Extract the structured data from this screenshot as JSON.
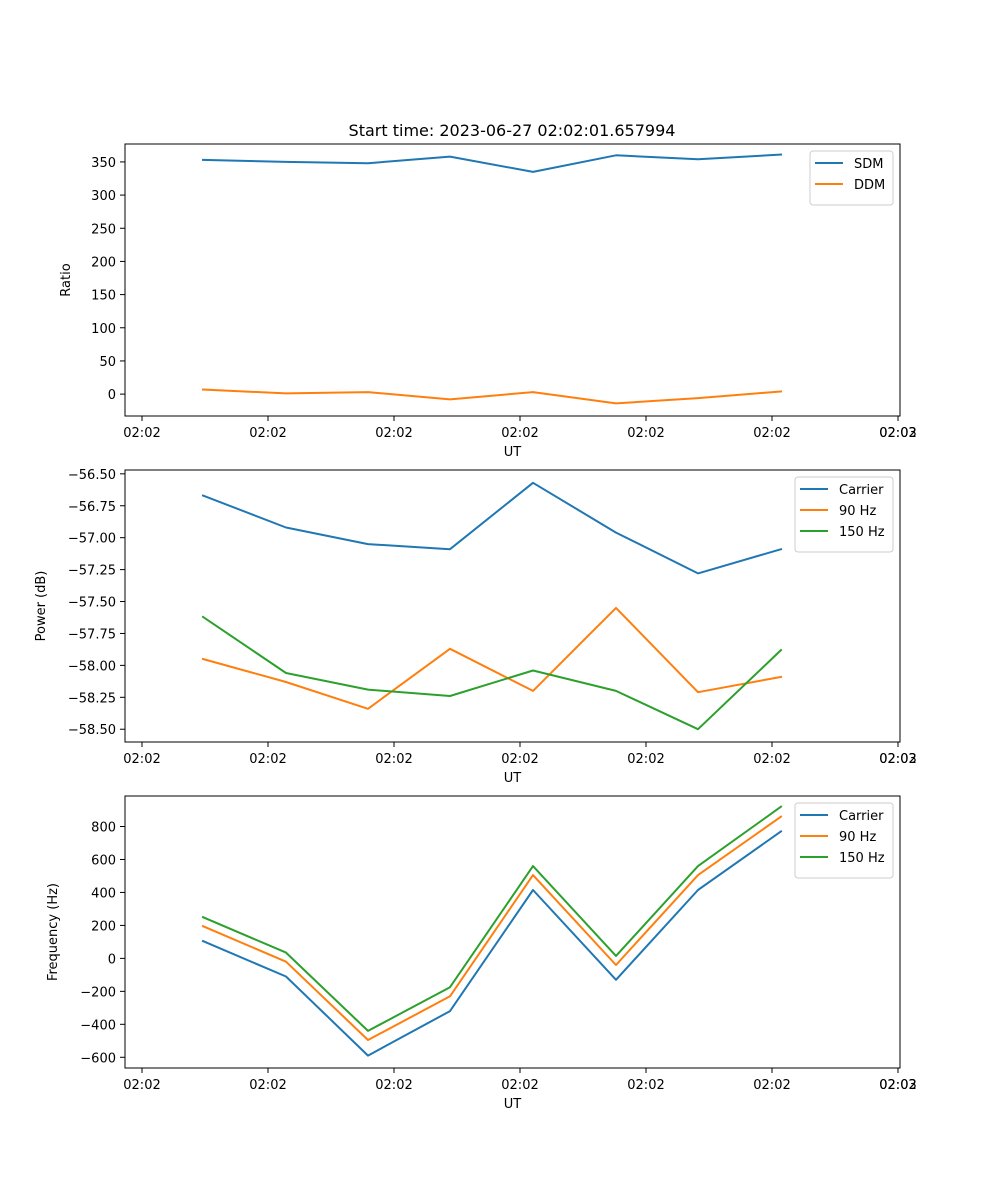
{
  "chart_data": [
    {
      "type": "line",
      "title": "Start time: 2023-06-27 02:02:01.657994",
      "xlabel": "UT",
      "ylabel": "Ratio",
      "x_tick_labels": [
        "02:02",
        "02:02",
        "02:02",
        "02:02",
        "02:02",
        "02:02",
        "02:02",
        "02:03"
      ],
      "y_ticks": [
        0,
        50,
        100,
        150,
        200,
        250,
        300,
        350
      ],
      "ylim": [
        -33,
        377
      ],
      "grid": false,
      "legend_position": "top-right",
      "series": [
        {
          "name": "SDM",
          "color": "#1f77b4",
          "values": [
            353,
            350,
            348,
            358,
            335,
            360,
            354,
            361
          ]
        },
        {
          "name": "DDM",
          "color": "#ff7f0e",
          "values": [
            7,
            1,
            3,
            -8,
            3,
            -14,
            -6,
            4
          ]
        }
      ]
    },
    {
      "type": "line",
      "title": "",
      "xlabel": "UT",
      "ylabel": "Power (dB)",
      "x_tick_labels": [
        "02:02",
        "02:02",
        "02:02",
        "02:02",
        "02:02",
        "02:02",
        "02:02",
        "02:03"
      ],
      "y_ticks": [
        -56.5,
        -56.75,
        -57.0,
        -57.25,
        -57.5,
        -57.75,
        -58.0,
        -58.25,
        -58.5
      ],
      "y_tick_labels": [
        "−56.50",
        "−56.75",
        "−57.00",
        "−57.25",
        "−57.50",
        "−57.75",
        "−58.00",
        "−58.25",
        "−58.50"
      ],
      "ylim": [
        -58.6,
        -56.47
      ],
      "grid": false,
      "legend_position": "top-right",
      "series": [
        {
          "name": "Carrier",
          "color": "#1f77b4",
          "values": [
            -56.67,
            -56.92,
            -57.05,
            -57.09,
            -56.57,
            -56.96,
            -57.28,
            -57.09
          ]
        },
        {
          "name": "90 Hz",
          "color": "#ff7f0e",
          "values": [
            -57.95,
            -58.13,
            -58.34,
            -57.87,
            -58.2,
            -57.55,
            -58.21,
            -58.09
          ]
        },
        {
          "name": "150 Hz",
          "color": "#2ca02c",
          "values": [
            -57.62,
            -58.06,
            -58.19,
            -58.24,
            -58.04,
            -58.2,
            -58.5,
            -57.88
          ]
        }
      ]
    },
    {
      "type": "line",
      "title": "",
      "xlabel": "UT",
      "ylabel": "Frequency (Hz)",
      "x_tick_labels": [
        "02:02",
        "02:02",
        "02:02",
        "02:02",
        "02:02",
        "02:02",
        "02:02",
        "02:03"
      ],
      "y_ticks": [
        -600,
        -400,
        -200,
        0,
        200,
        400,
        600,
        800
      ],
      "y_tick_labels": [
        "−600",
        "−400",
        "−200",
        "0",
        "200",
        "400",
        "600",
        "800"
      ],
      "ylim": [
        -665,
        985
      ],
      "grid": false,
      "legend_position": "top-right",
      "series": [
        {
          "name": "Carrier",
          "color": "#1f77b4",
          "values": [
            105,
            -110,
            -590,
            -320,
            415,
            -130,
            415,
            770
          ]
        },
        {
          "name": "90 Hz",
          "color": "#ff7f0e",
          "values": [
            195,
            -20,
            -495,
            -230,
            505,
            -40,
            505,
            860
          ]
        },
        {
          "name": "150 Hz",
          "color": "#2ca02c",
          "values": [
            250,
            35,
            -440,
            -175,
            560,
            15,
            560,
            920
          ]
        }
      ]
    }
  ]
}
